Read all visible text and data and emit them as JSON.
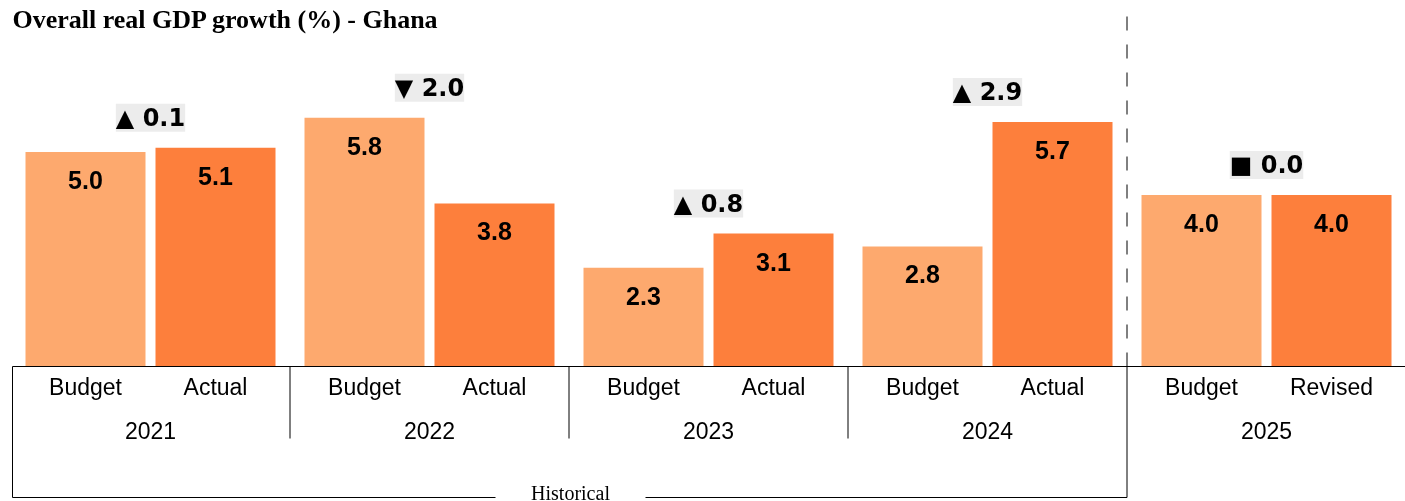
{
  "chart_data": {
    "type": "bar",
    "title": "Overall real GDP growth (%) - Ghana",
    "categories": [
      "Budget",
      "Actual",
      "Budget",
      "Actual",
      "Budget",
      "Actual",
      "Budget",
      "Actual",
      "Budget",
      "Revised"
    ],
    "values": [
      5.0,
      5.1,
      5.8,
      3.8,
      2.3,
      3.1,
      2.8,
      5.7,
      4.0,
      4.0
    ],
    "colors": [
      "#fda96e",
      "#fd7f3c",
      "#fda96e",
      "#fd7f3c",
      "#fda96e",
      "#fd7f3c",
      "#fda96e",
      "#fd7f3c",
      "#fda96e",
      "#fd7f3c"
    ],
    "value_labels": [
      "5.0",
      "5.1",
      "5.8",
      "3.8",
      "2.3",
      "3.1",
      "2.8",
      "5.7",
      "4.0",
      "4.0"
    ],
    "annotations": [
      "2021",
      "2022",
      "2023",
      "2024",
      "2025",
      "Historical",
      "▲ 0.1",
      "▼ 2.0",
      "▲ 0.8",
      "▲ 2.9",
      "■ 0.0"
    ]
  }
}
